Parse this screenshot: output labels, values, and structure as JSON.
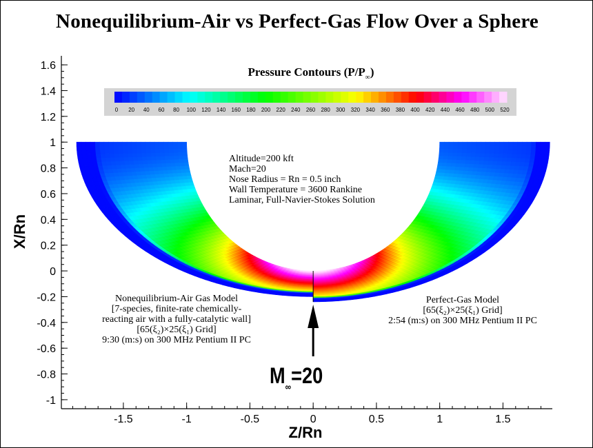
{
  "chart_data": {
    "type": "heatmap",
    "title": "Nonequilibrium-Air vs Perfect-Gas Flow Over a Sphere",
    "xlabel": "Z/Rn",
    "ylabel": "X/Rn",
    "xlim": [
      -1.99,
      1.89
    ],
    "ylim": [
      -1.07,
      1.67
    ],
    "xticks": [
      "-1.5",
      "-1",
      "-0.5",
      "0",
      "0.5",
      "1",
      "1.5"
    ],
    "yticks": [
      "1.6",
      "1.4",
      "1.2",
      "1",
      "0.8",
      "0.6",
      "0.4",
      "0.2",
      "0",
      "-0.2",
      "-0.4",
      "-0.6",
      "-0.8",
      "-1"
    ],
    "colorbar": {
      "title_main": "Pressure Contours (P/P",
      "title_sub": "∞",
      "title_end": ")",
      "range": [
        0,
        520
      ],
      "ticks": [
        "0",
        "20",
        "40",
        "60",
        "80",
        "100",
        "120",
        "140",
        "160",
        "180",
        "200",
        "220",
        "240",
        "260",
        "280",
        "300",
        "320",
        "340",
        "360",
        "380",
        "400",
        "420",
        "440",
        "460",
        "480",
        "500",
        "520"
      ],
      "colormap": [
        [
          0,
          "#0000ff"
        ],
        [
          100,
          "#00ffff"
        ],
        [
          200,
          "#00ff00"
        ],
        [
          320,
          "#ffff00"
        ],
        [
          400,
          "#ff0000"
        ],
        [
          460,
          "#ff00ff"
        ],
        [
          520,
          "#ffe8ff"
        ]
      ]
    },
    "body_radius": 1,
    "max_pressure": 520,
    "annotations": {
      "conditions": [
        "Altitude=200 kft",
        "Mach=20",
        "Nose Radius = Rn = 0.5 inch",
        "Wall Temperature = 3600 Rankine",
        "Laminar, Full-Navier-Stokes Solution"
      ],
      "left_model": [
        "Nonequilibrium-Air Gas Model",
        "[7-species, finite-rate chemically-",
        "reacting air with a fully-catalytic wall]",
        "[65(ξ₂)×25(ξ₁) Grid]",
        "9:30 (m:s) on 300 MHz Pentium II PC"
      ],
      "right_model": [
        "Perfect-Gas Model",
        "[65(ξ₂)×25(ξ₁) Grid]",
        "2:54 (m:s) on 300 MHz Pentium II PC"
      ],
      "freestream_main": "M",
      "freestream_sub": "∞",
      "freestream_end": "=20"
    }
  }
}
